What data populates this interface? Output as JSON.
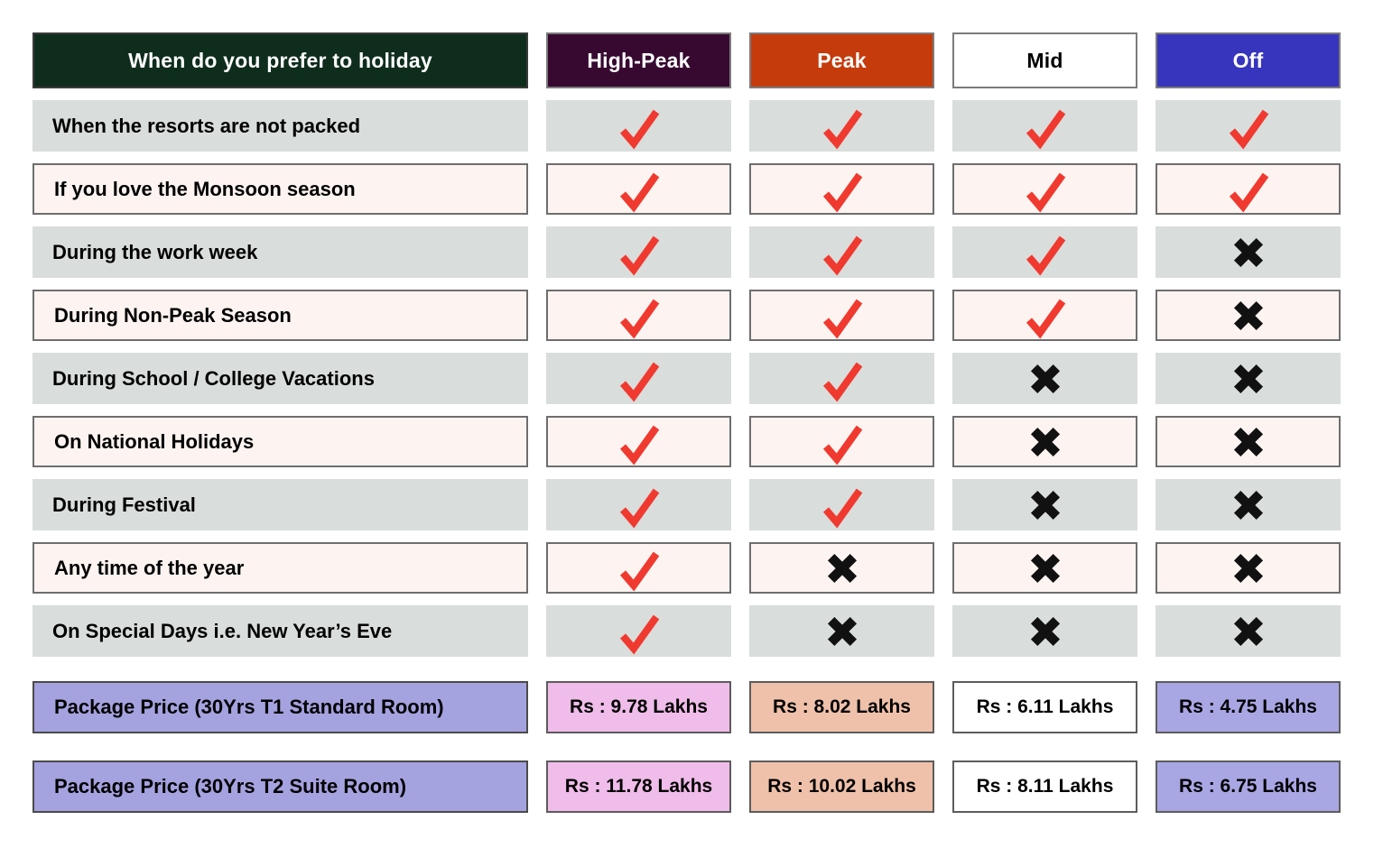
{
  "table": {
    "question_header": "When do you prefer to holiday",
    "columns": [
      {
        "label": "High-Peak",
        "bg": "#370931",
        "fg": "#ffffff",
        "price_bg": "#f0bce9"
      },
      {
        "label": "Peak",
        "bg": "#c53b0c",
        "fg": "#ffffff",
        "price_bg": "#efc1aa"
      },
      {
        "label": "Mid",
        "bg": "#ffffff",
        "fg": "#000000",
        "price_bg": "#ffffff"
      },
      {
        "label": "Off",
        "bg": "#3734bd",
        "fg": "#ffffff",
        "price_bg": "#a9a6e4"
      }
    ],
    "rows": [
      {
        "label": "When the resorts are not packed",
        "marks": [
          "check",
          "check",
          "check",
          "check"
        ]
      },
      {
        "label": "If you love the Monsoon season",
        "marks": [
          "check",
          "check",
          "check",
          "check"
        ]
      },
      {
        "label": "During the work week",
        "marks": [
          "check",
          "check",
          "check",
          "cross"
        ]
      },
      {
        "label": "During Non-Peak Season",
        "marks": [
          "check",
          "check",
          "check",
          "cross"
        ]
      },
      {
        "label": "During School / College Vacations",
        "marks": [
          "check",
          "check",
          "cross",
          "cross"
        ]
      },
      {
        "label": "On National Holidays",
        "marks": [
          "check",
          "check",
          "cross",
          "cross"
        ]
      },
      {
        "label": "During Festival",
        "marks": [
          "check",
          "check",
          "cross",
          "cross"
        ]
      },
      {
        "label": "Any time of the year",
        "marks": [
          "check",
          "cross",
          "cross",
          "cross"
        ]
      },
      {
        "label": "On Special Days i.e. New Year’s Eve",
        "marks": [
          "check",
          "cross",
          "cross",
          "cross"
        ]
      }
    ],
    "price_rows": [
      {
        "label": "Package Price (30Yrs T1 Standard Room)",
        "prices": [
          "Rs : 9.78 Lakhs",
          "Rs : 8.02 Lakhs",
          "Rs : 6.11 Lakhs",
          "Rs : 4.75 Lakhs"
        ]
      },
      {
        "label": "Package Price (30Yrs T2 Suite Room)",
        "prices": [
          "Rs : 11.78 Lakhs",
          "Rs : 10.02 Lakhs",
          "Rs : 8.11 Lakhs",
          "Rs : 6.75 Lakhs"
        ]
      }
    ]
  },
  "colors": {
    "question_header_bg": "#0e2d1d",
    "question_header_fg": "#ffffff",
    "row_gray_bg": "#d9dddb",
    "row_light_bg": "#fdf4f1",
    "row_border": "#6e6e6e",
    "check": "#f0392f",
    "cross": "#111111",
    "price_label_bg": "#a5a2e0"
  },
  "icons": {
    "check": "check-icon",
    "cross": "cross-icon"
  },
  "chart_data": {
    "type": "table",
    "title": "When do you prefer to holiday",
    "columns": [
      "When do you prefer to holiday",
      "High-Peak",
      "Peak",
      "Mid",
      "Off"
    ],
    "rows": [
      [
        "When the resorts are not packed",
        "yes",
        "yes",
        "yes",
        "yes"
      ],
      [
        "If you love the Monsoon season",
        "yes",
        "yes",
        "yes",
        "yes"
      ],
      [
        "During the work week",
        "yes",
        "yes",
        "yes",
        "no"
      ],
      [
        "During Non-Peak Season",
        "yes",
        "yes",
        "yes",
        "no"
      ],
      [
        "During School / College Vacations",
        "yes",
        "yes",
        "no",
        "no"
      ],
      [
        "On National Holidays",
        "yes",
        "yes",
        "no",
        "no"
      ],
      [
        "During Festival",
        "yes",
        "yes",
        "no",
        "no"
      ],
      [
        "Any time of the year",
        "yes",
        "no",
        "no",
        "no"
      ],
      [
        "On Special Days i.e. New Year’s Eve",
        "yes",
        "no",
        "no",
        "no"
      ],
      [
        "Package Price (30Yrs T1 Standard Room)",
        "Rs : 9.78 Lakhs",
        "Rs : 8.02 Lakhs",
        "Rs : 6.11 Lakhs",
        "Rs : 4.75 Lakhs"
      ],
      [
        "Package Price (30Yrs T2 Suite Room)",
        "Rs : 11.78 Lakhs",
        "Rs : 10.02 Lakhs",
        "Rs : 8.11 Lakhs",
        "Rs : 6.75 Lakhs"
      ]
    ]
  }
}
